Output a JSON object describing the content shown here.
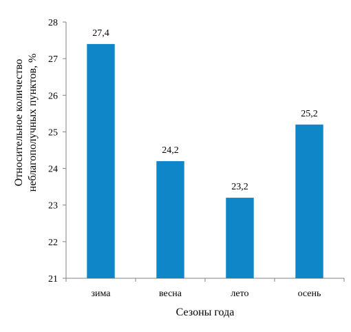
{
  "chart_data": {
    "type": "bar",
    "categories": [
      "зима",
      "весна",
      "лето",
      "осень"
    ],
    "values": [
      27.4,
      24.2,
      23.2,
      25.2
    ],
    "data_labels": [
      "27,4",
      "24,2",
      "23,2",
      "25,2"
    ],
    "xlabel": "Сезоны года",
    "ylabel_lines": [
      "Относительное количество",
      "неблагополучных пунктов, %"
    ],
    "ylim": [
      21,
      28
    ],
    "yticks": [
      21,
      22,
      23,
      24,
      25,
      26,
      27,
      28
    ],
    "bar_color": "#0f86c7",
    "grid": false,
    "legend": "none"
  }
}
